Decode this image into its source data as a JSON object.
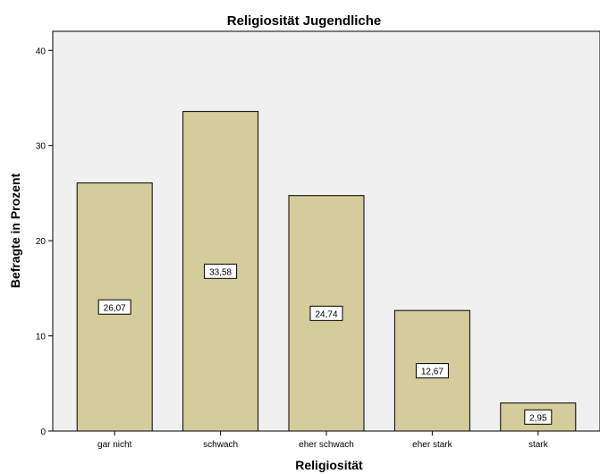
{
  "chart_data": {
    "type": "bar",
    "title": "Religiosität Jugendliche",
    "xlabel": "Religiosität",
    "ylabel": "Befragte in Prozent",
    "categories": [
      "gar nicht",
      "schwach",
      "eher schwach",
      "eher stark",
      "stark"
    ],
    "values": [
      26.07,
      33.58,
      24.74,
      12.67,
      2.95
    ],
    "data_labels": [
      "26,07",
      "33,58",
      "24,74",
      "12,67",
      "2,95"
    ],
    "ylim": [
      0,
      42
    ],
    "yticks": [
      "0",
      "10",
      "20",
      "30",
      "40"
    ],
    "grid": false,
    "legend": "none",
    "colors": {
      "plot_background": "#f0f0f0",
      "bar_fill": "#d4cc9a",
      "bar_stroke": "#000000"
    }
  }
}
